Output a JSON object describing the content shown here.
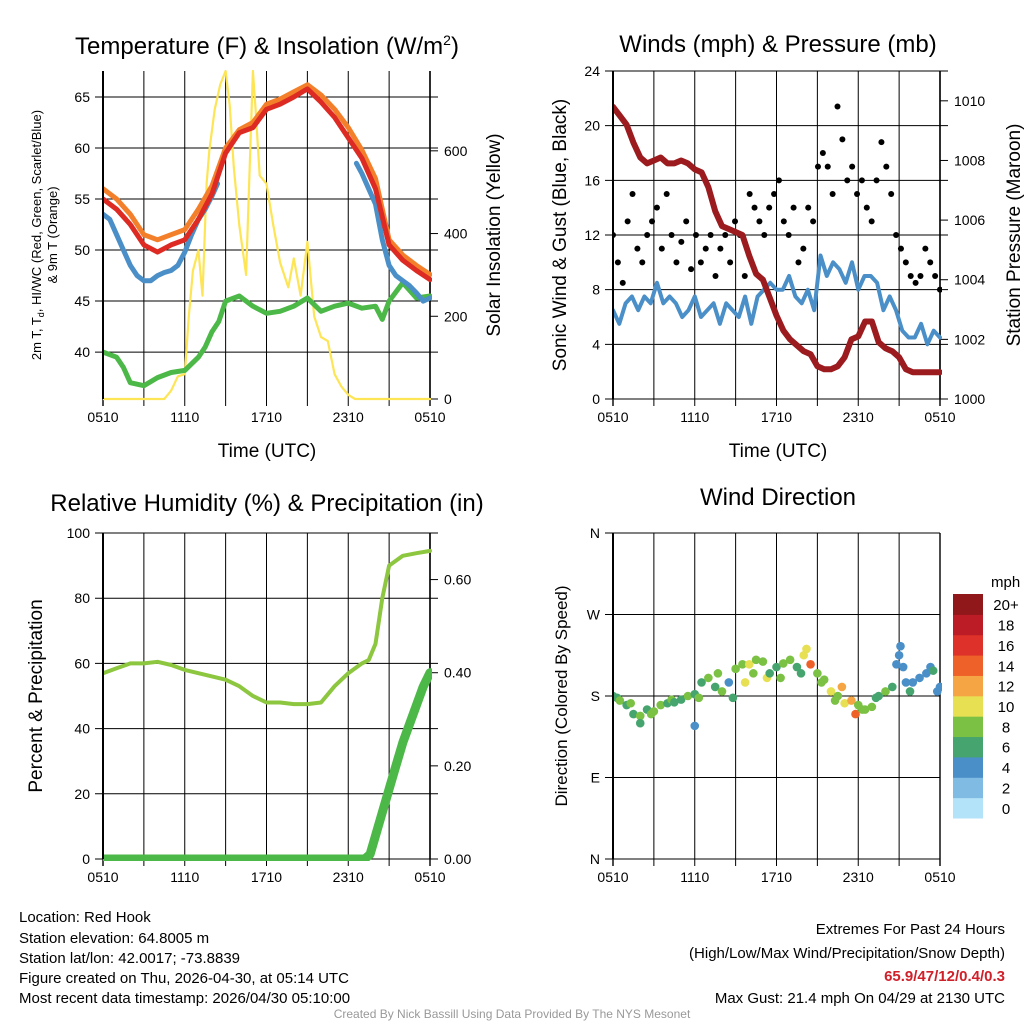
{
  "chart_data": [
    {
      "type": "line",
      "title": {
        "main": "Temperature (F) & Insolation (W/m",
        "sup": "2",
        "end": ")"
      },
      "xlabel": "Time (UTC)",
      "ylabel": {
        "line1_a": "2m T, T",
        "line1_sub": "d",
        "line1_b": ", HI/WC (Red, Green, Scarlet/Blue)",
        "line2": "& 9m T (Orange)"
      },
      "y2label": "Solar Insolation (Yellow)",
      "xticks": [
        "0510",
        "1110",
        "1710",
        "2310",
        "0510"
      ],
      "yticks": [
        "40",
        "45",
        "50",
        "55",
        "60",
        "65"
      ],
      "y2ticks": [
        "0",
        "200",
        "400",
        "600"
      ],
      "ylim": [
        35.4,
        67.55
      ],
      "y2lim": [
        0,
        793
      ],
      "xlim_hours": [
        0,
        24
      ],
      "series": [
        {
          "name": "2m T",
          "color": "#dd2a23",
          "axis": "left",
          "x": [
            0,
            1,
            2,
            3,
            4,
            5,
            6,
            7,
            8,
            9,
            10,
            11,
            12,
            13,
            14,
            15,
            16,
            17,
            18,
            19,
            20,
            21,
            22,
            23,
            24
          ],
          "y": [
            55,
            54,
            52.5,
            50.5,
            49.8,
            50.5,
            51,
            53,
            55.5,
            59.5,
            61.5,
            62,
            63.8,
            64.3,
            65,
            65.8,
            64.5,
            63,
            61,
            59,
            56,
            50.5,
            49,
            48,
            47.1
          ]
        },
        {
          "name": "9m T",
          "color": "#f47f2a",
          "axis": "left",
          "x": [
            0,
            1,
            2,
            3,
            4,
            5,
            6,
            7,
            8,
            9,
            10,
            11,
            12,
            13,
            14,
            15,
            16,
            17,
            18,
            19,
            20,
            21,
            22,
            23,
            24
          ],
          "y": [
            56,
            55,
            53.5,
            51.5,
            51,
            51.5,
            52,
            54,
            56.3,
            60,
            61.8,
            62.5,
            64.3,
            64.8,
            65.5,
            66.2,
            65.2,
            63.8,
            62,
            59.8,
            57,
            51,
            49.5,
            48.5,
            47.6
          ]
        },
        {
          "name": "HI/WC",
          "color": "#4a8fc7",
          "axis": "left",
          "x": [
            0,
            0.5,
            1,
            1.5,
            2,
            2.5,
            3,
            3.5,
            4,
            4.5,
            5,
            5.5,
            6,
            6.5,
            7,
            7.5,
            8,
            8.4
          ],
          "y": [
            53.5,
            53,
            51.5,
            50,
            48.5,
            47.5,
            47,
            47,
            47.5,
            47.8,
            48,
            48.5,
            49.8,
            51.5,
            53,
            54,
            55.3,
            56.5
          ]
        },
        {
          "name": "HI/WC late",
          "color": "#4a8fc7",
          "axis": "left",
          "x": [
            18.6,
            19,
            19.5,
            20,
            20.5,
            21,
            21.5,
            22,
            22.5,
            23,
            23.5,
            24
          ],
          "y": [
            58.5,
            57.5,
            56,
            54.5,
            51,
            48.5,
            47.5,
            47,
            46.5,
            45.8,
            45,
            45.3
          ]
        },
        {
          "name": "Td",
          "color": "#4cb848",
          "axis": "left",
          "x": [
            0,
            1,
            1.5,
            2,
            3,
            4,
            5,
            6,
            7,
            7.5,
            8,
            8.5,
            9,
            10,
            11,
            12,
            13,
            14,
            15,
            16,
            17,
            18,
            19,
            20,
            20.5,
            21,
            22,
            23,
            24
          ],
          "y": [
            40,
            39.5,
            38.5,
            37,
            36.7,
            37.5,
            38,
            38.2,
            39.5,
            40.5,
            42,
            43,
            45,
            45.5,
            44.5,
            43.8,
            44,
            44.5,
            45.3,
            44,
            44.5,
            44.8,
            44.3,
            44.5,
            43.2,
            45,
            46.8,
            45.3,
            45.5
          ]
        },
        {
          "name": "Insolation",
          "color": "#fde556",
          "axis": "right",
          "x": [
            0,
            4.5,
            5,
            5.5,
            6,
            6.3,
            6.6,
            7,
            7.3,
            7.6,
            7.8,
            8.2,
            8.6,
            9,
            9.3,
            9.6,
            10,
            10.5,
            11,
            11.2,
            11.5,
            12,
            12.5,
            13,
            13.3,
            13.6,
            14,
            14.5,
            15,
            15.5,
            16,
            16.5,
            17,
            17.5,
            18,
            18.5,
            24
          ],
          "y": [
            0,
            0,
            20,
            55,
            60,
            200,
            310,
            360,
            250,
            520,
            600,
            700,
            760,
            793,
            710,
            560,
            420,
            300,
            793,
            700,
            540,
            520,
            420,
            330,
            300,
            270,
            340,
            250,
            380,
            200,
            150,
            140,
            60,
            30,
            10,
            0,
            0
          ]
        }
      ]
    },
    {
      "type": "line",
      "title": "Winds (mph) & Pressure (mb)",
      "xlabel": "Time (UTC)",
      "ylabel": "Sonic Wind & Gust (Blue, Black)",
      "y2label": "Station Pressure (Maroon)",
      "xticks": [
        "0510",
        "1110",
        "1710",
        "2310",
        "0510"
      ],
      "yticks": [
        "0",
        "4",
        "8",
        "12",
        "16",
        "20",
        "24"
      ],
      "y2ticks": [
        "1000",
        "1002",
        "1004",
        "1006",
        "1008",
        "1010"
      ],
      "ylim": [
        0,
        24
      ],
      "y2lim": [
        1000,
        1011
      ],
      "xlim_hours": [
        0,
        24
      ],
      "wind": {
        "name": "Sonic Wind",
        "color": "#4a8fc7",
        "values": [
          6.5,
          5.5,
          7,
          7.5,
          6.5,
          7.5,
          7,
          8.5,
          7,
          7.5,
          7,
          6,
          6.5,
          7.5,
          6,
          6.5,
          7,
          5.5,
          7,
          6.5,
          6,
          7.5,
          5.5,
          7.5,
          8,
          8.5,
          8,
          8,
          9,
          7.5,
          7,
          8,
          6.5,
          10.5,
          9,
          10,
          9.5,
          8.5,
          10,
          8,
          9,
          9,
          8.5,
          6.5,
          7.5,
          6.5,
          5,
          4.5,
          4.5,
          5.5,
          4,
          5,
          4.5
        ]
      },
      "gust": {
        "name": "Gust",
        "color": "#000000",
        "values": [
          12,
          10,
          8.5,
          13,
          15,
          11,
          10,
          12,
          13,
          14,
          11,
          15,
          12,
          10,
          11.5,
          13,
          9.5,
          12,
          10,
          11,
          12,
          9,
          11,
          12,
          10,
          13,
          12,
          9,
          15,
          14,
          13,
          12,
          14,
          15,
          16,
          13,
          12,
          14,
          10,
          11,
          14,
          13,
          17,
          18,
          17,
          15,
          21.4,
          19,
          16,
          17,
          15,
          16,
          14,
          13,
          16,
          18.8,
          17,
          15,
          12,
          11,
          10,
          9,
          8.5,
          9,
          11,
          10,
          9,
          8
        ]
      },
      "pressure": {
        "name": "Station Pressure",
        "color": "#9b1b1e",
        "x": [
          0,
          0.5,
          1,
          1.5,
          2,
          2.5,
          3,
          3.5,
          4,
          4.5,
          5,
          5.5,
          6,
          6.5,
          7,
          7.5,
          8,
          8.5,
          9,
          9.5,
          10,
          10.5,
          11,
          11.5,
          12,
          12.5,
          13,
          13.5,
          14,
          14.5,
          15,
          15.5,
          16,
          16.5,
          17,
          17.5,
          18,
          18.5,
          19,
          19.5,
          20,
          20.5,
          21,
          21.5,
          22,
          22.5,
          23,
          23.5,
          24
        ],
        "y": [
          1009.8,
          1009.5,
          1009.2,
          1008.6,
          1008.1,
          1007.9,
          1008.0,
          1008.1,
          1007.9,
          1007.9,
          1008.0,
          1007.9,
          1007.7,
          1007.6,
          1007.1,
          1006.3,
          1005.8,
          1005.7,
          1005.6,
          1005.5,
          1004.8,
          1004.2,
          1004.0,
          1003.4,
          1002.8,
          1002.3,
          1002.0,
          1001.8,
          1001.6,
          1001.5,
          1001.1,
          1001.0,
          1001.0,
          1001.1,
          1001.4,
          1002.0,
          1002.1,
          1002.6,
          1002.6,
          1001.9,
          1001.7,
          1001.6,
          1001.4,
          1001.0,
          1000.9,
          1000.9,
          1000.9,
          1000.9,
          1000.9
        ]
      }
    },
    {
      "type": "line",
      "title": "Relative Humidity (%) & Precipitation (in)",
      "ylabel": "Percent & Precipitation",
      "xticks": [
        "0510",
        "1110",
        "1710",
        "2310",
        "0510"
      ],
      "yticks": [
        "0",
        "20",
        "40",
        "60",
        "80",
        "100"
      ],
      "y2ticks": [
        "0.00",
        "0.20",
        "0.40",
        "0.60"
      ],
      "ylim": [
        0,
        100
      ],
      "y2lim": [
        0,
        0.7
      ],
      "xlim_hours": [
        0,
        24
      ],
      "series": [
        {
          "name": "Relative Humidity",
          "color": "#8dc63f",
          "axis": "left",
          "width": 4,
          "x": [
            0,
            1,
            2,
            3,
            4,
            5,
            6,
            7,
            8,
            9,
            10,
            11,
            12,
            13,
            14,
            15,
            16,
            17,
            18,
            19,
            19.5,
            20,
            20.5,
            21,
            22,
            23,
            24
          ],
          "y": [
            57,
            58.5,
            60,
            60,
            60.5,
            59.5,
            58,
            57,
            56,
            55,
            53,
            50,
            48,
            48,
            47.5,
            47.5,
            48,
            53,
            57,
            60,
            61,
            66,
            80,
            90,
            93,
            93.8,
            94.5
          ]
        },
        {
          "name": "Precipitation",
          "color": "#4cb848",
          "axis": "right",
          "width": 9,
          "x": [
            0,
            19.2,
            19.6,
            20,
            20.5,
            21,
            21.5,
            22,
            22.5,
            23,
            23.5,
            24
          ],
          "y": [
            0,
            0,
            0.01,
            0.05,
            0.1,
            0.15,
            0.2,
            0.25,
            0.29,
            0.33,
            0.37,
            0.4
          ]
        }
      ]
    },
    {
      "type": "scatter",
      "title": "Wind Direction",
      "ylabel": "Direction (Colored By Speed)",
      "xticks": [
        "0510",
        "1110",
        "1710",
        "2310",
        "0510"
      ],
      "yticks": [
        "N",
        "E",
        "S",
        "W",
        "N"
      ],
      "ylim": [
        0,
        360
      ],
      "xlim_hours": [
        0,
        24
      ],
      "colorbar": {
        "title": "mph",
        "labels": [
          "0",
          "2",
          "4",
          "6",
          "8",
          "10",
          "12",
          "14",
          "16",
          "18",
          "20+"
        ],
        "colors": [
          "#b3e3f8",
          "#7fbbe3",
          "#4a8fc7",
          "#46a56f",
          "#7bc143",
          "#e7e053",
          "#f6a544",
          "#ee6229",
          "#dd3129",
          "#bc1c25",
          "#90171a"
        ]
      },
      "points": [
        [
          0,
          180,
          5
        ],
        [
          0.3,
          178,
          6
        ],
        [
          0.5,
          175,
          7
        ],
        [
          1,
          170,
          6
        ],
        [
          1.3,
          172,
          8
        ],
        [
          1.5,
          160,
          6
        ],
        [
          2,
          158,
          7
        ],
        [
          2,
          150,
          6
        ],
        [
          2.5,
          165,
          6
        ],
        [
          2.8,
          160,
          8
        ],
        [
          3,
          163,
          7
        ],
        [
          3.5,
          170,
          7
        ],
        [
          4,
          172,
          6
        ],
        [
          4.3,
          176,
          8
        ],
        [
          4.5,
          173,
          6
        ],
        [
          5,
          176,
          6
        ],
        [
          5.5,
          180,
          7
        ],
        [
          6,
          147,
          4
        ],
        [
          6,
          182,
          6
        ],
        [
          6.3,
          178,
          8
        ],
        [
          6.5,
          195,
          6
        ],
        [
          7,
          200,
          7
        ],
        [
          7.5,
          190,
          6
        ],
        [
          7.7,
          205,
          7
        ],
        [
          8,
          185,
          7
        ],
        [
          8.5,
          195,
          4
        ],
        [
          8.8,
          178,
          6
        ],
        [
          9,
          210,
          7
        ],
        [
          9.5,
          215,
          7
        ],
        [
          9.7,
          195,
          10
        ],
        [
          10,
          215,
          10
        ],
        [
          10.3,
          205,
          8
        ],
        [
          10.5,
          220,
          8
        ],
        [
          11,
          218,
          8
        ],
        [
          11.3,
          200,
          10
        ],
        [
          11.5,
          205,
          6
        ],
        [
          12,
          212,
          6
        ],
        [
          12.3,
          200,
          7
        ],
        [
          12.5,
          216,
          7
        ],
        [
          13,
          220,
          8
        ],
        [
          13.5,
          212,
          5
        ],
        [
          13.8,
          205,
          6
        ],
        [
          14,
          225,
          10
        ],
        [
          14.2,
          232,
          10
        ],
        [
          14.5,
          215,
          13
        ],
        [
          15,
          205,
          8
        ],
        [
          15.3,
          195,
          7
        ],
        [
          15.5,
          198,
          7
        ],
        [
          16,
          185,
          10
        ],
        [
          16.3,
          175,
          8
        ],
        [
          16.5,
          180,
          8
        ],
        [
          16.8,
          190,
          12
        ],
        [
          17,
          172,
          9
        ],
        [
          17.5,
          175,
          12
        ],
        [
          17.8,
          160,
          14
        ],
        [
          18,
          170,
          7
        ],
        [
          18.3,
          165,
          8
        ],
        [
          18.5,
          165,
          8
        ],
        [
          19,
          168,
          7
        ],
        [
          19.3,
          178,
          6
        ],
        [
          19.5,
          180,
          6
        ],
        [
          20,
          185,
          7
        ],
        [
          20.5,
          190,
          6
        ],
        [
          20.8,
          215,
          4
        ],
        [
          21,
          225,
          3
        ],
        [
          21.1,
          235,
          3
        ],
        [
          21.3,
          212,
          4
        ],
        [
          21.5,
          195,
          4
        ],
        [
          21.8,
          185,
          6
        ],
        [
          22,
          195,
          4
        ],
        [
          22.5,
          200,
          4
        ],
        [
          23,
          205,
          4
        ],
        [
          23.3,
          212,
          4
        ],
        [
          23.5,
          208,
          6
        ],
        [
          23.8,
          185,
          4
        ],
        [
          24,
          190,
          4
        ]
      ]
    }
  ],
  "footer": {
    "location": "Location: Red Hook",
    "elevation": "Station elevation: 64.8005 m",
    "latlon": "Station lat/lon: 42.0017; -73.8839",
    "created": "Figure created on Thu, 2026-04-30, at 05:14 UTC",
    "recent": "Most recent data timestamp: 2026/04/30 05:10:00",
    "extremes_title": "Extremes For Past 24 Hours",
    "extremes_legend": "(High/Low/Max Wind/Precipitation/Snow Depth)",
    "extremes_values": "65.9/47/12/0.4/0.3",
    "max_gust": "Max Gust: 21.4 mph On 04/29 at 2130 UTC",
    "credit": "Created By Nick Bassill Using Data Provided By The NYS Mesonet"
  }
}
